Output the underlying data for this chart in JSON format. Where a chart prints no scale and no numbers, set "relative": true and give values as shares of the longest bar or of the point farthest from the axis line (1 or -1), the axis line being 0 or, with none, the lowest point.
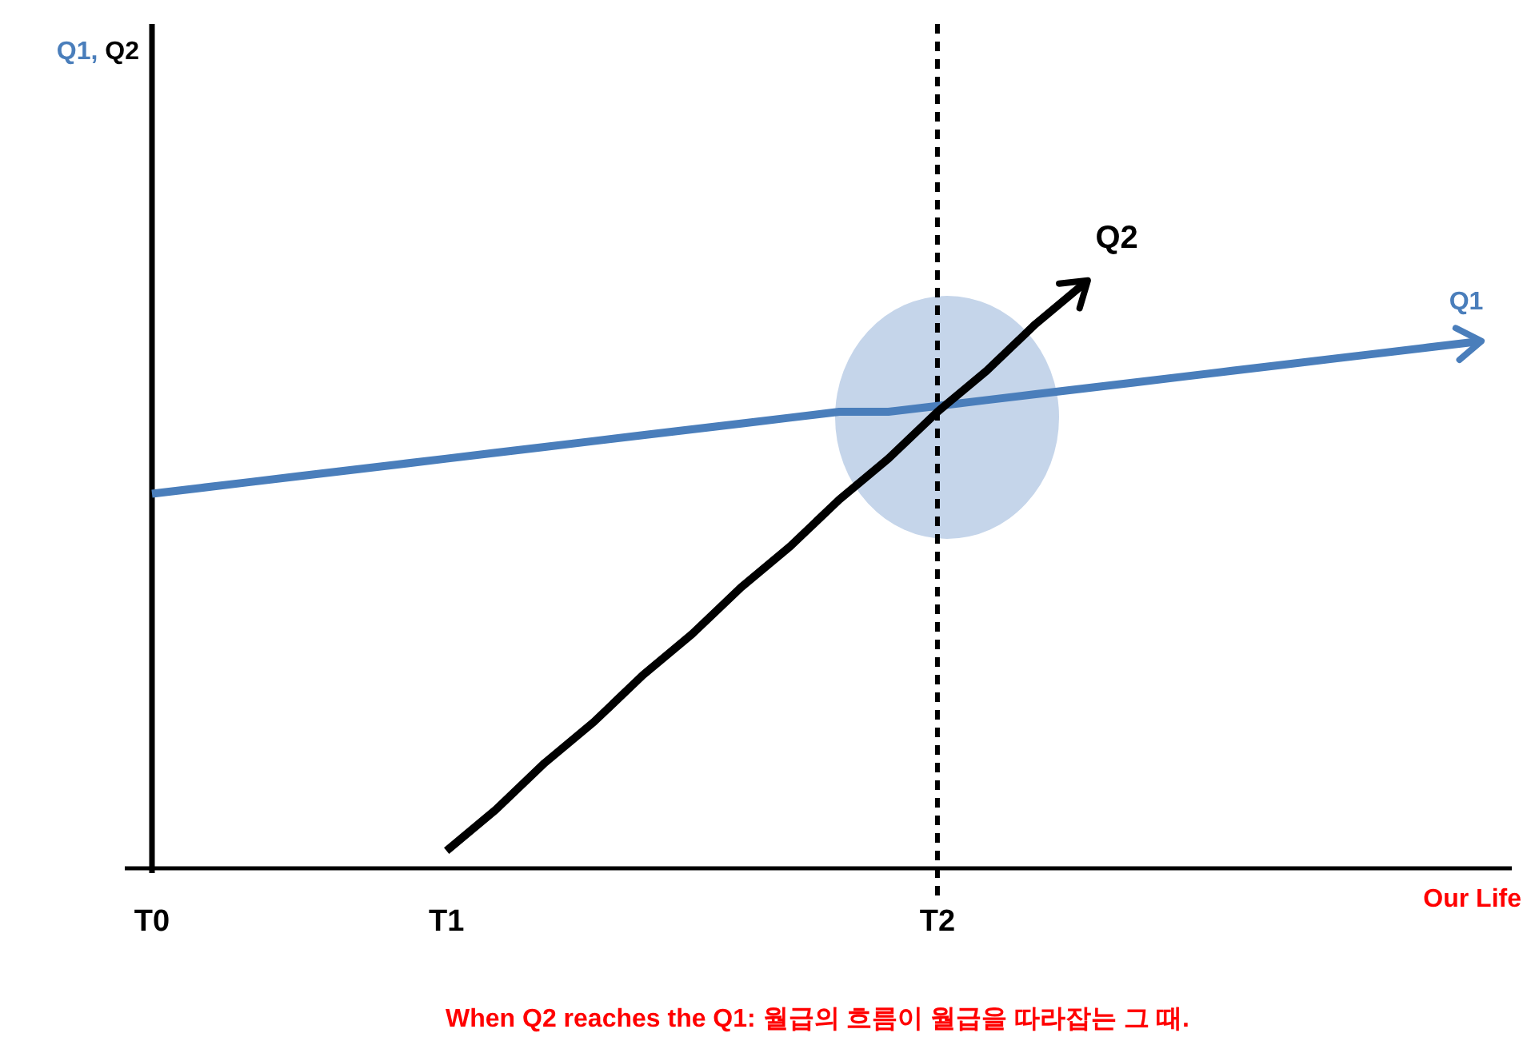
{
  "chart_data": {
    "type": "line",
    "relative": true,
    "xlabel": "Our Life",
    "categories": [
      "T0",
      null,
      null,
      null,
      null,
      null,
      "T1",
      null,
      null,
      null,
      null,
      null,
      null,
      null,
      null,
      null,
      "T2",
      null,
      null,
      null,
      null,
      null,
      null,
      null,
      null,
      null,
      null,
      null
    ],
    "series": [
      {
        "name": "Q1",
        "color": "#4a7ebb",
        "values": [
          0.64,
          0.65,
          0.66,
          0.67,
          0.68,
          0.69,
          0.7,
          0.71,
          0.72,
          0.73,
          0.74,
          0.75,
          0.76,
          0.77,
          0.78,
          0.78,
          0.79,
          0.8,
          0.81,
          0.82,
          0.83,
          0.84,
          0.85,
          0.86,
          0.87,
          0.88,
          0.89,
          0.9
        ]
      },
      {
        "name": "Q2",
        "color": "#000000",
        "values": [
          null,
          null,
          null,
          null,
          null,
          null,
          0.03,
          0.1,
          0.18,
          0.25,
          0.33,
          0.4,
          0.48,
          0.55,
          0.63,
          0.7,
          0.78,
          0.85,
          0.93,
          1,
          null,
          null,
          null,
          null,
          null,
          null,
          null,
          null
        ]
      }
    ],
    "ref_lines": [
      {
        "axis": "x",
        "value": "T2",
        "color": "#000000",
        "line_style": "dashed"
      }
    ],
    "annotations": [
      "Q1, Q2",
      "When Q2 reaches the Q1: 월급의 흐름이 월급을 따라잡는 그 때."
    ],
    "marker": "none",
    "line_style": "solid"
  }
}
